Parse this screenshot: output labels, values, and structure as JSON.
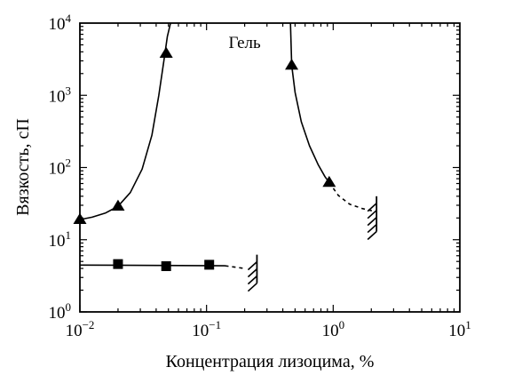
{
  "chart_data": {
    "type": "scatter",
    "xscale": "log",
    "yscale": "log",
    "xlim": [
      0.01,
      10
    ],
    "ylim": [
      1,
      10000
    ],
    "xlabel": "Концентрация лизоцима, %",
    "ylabel": "Вязкость, сП",
    "x_ticks": [
      {
        "value": 0.01,
        "base": "10",
        "exp": "−2"
      },
      {
        "value": 0.1,
        "base": "10",
        "exp": "−1"
      },
      {
        "value": 1,
        "base": "10",
        "exp": "0"
      },
      {
        "value": 10,
        "base": "10",
        "exp": "1"
      }
    ],
    "y_ticks": [
      {
        "value": 1,
        "base": "10",
        "exp": "0"
      },
      {
        "value": 10,
        "base": "10",
        "exp": "1"
      },
      {
        "value": 100,
        "base": "10",
        "exp": "2"
      },
      {
        "value": 1000,
        "base": "10",
        "exp": "3"
      },
      {
        "value": 10000,
        "base": "10",
        "exp": "4"
      }
    ],
    "grid": false,
    "annotations": [
      {
        "text": "Гель",
        "x": 0.2,
        "y": 4500
      }
    ],
    "series": [
      {
        "marker": "triangle",
        "color": "#000000",
        "x": [
          0.01,
          0.02,
          0.048
        ],
        "y": [
          19,
          29,
          3800
        ]
      },
      {
        "marker": "triangle",
        "color": "#000000",
        "x": [
          0.47,
          0.93
        ],
        "y": [
          2600,
          62
        ]
      },
      {
        "marker": "square",
        "color": "#000000",
        "x": [
          0.02,
          0.048,
          0.105
        ],
        "y": [
          4.6,
          4.3,
          4.5
        ]
      }
    ],
    "curves": [
      {
        "style": "solid",
        "x": [
          0.01,
          0.0125,
          0.016,
          0.02,
          0.025,
          0.031,
          0.037,
          0.042,
          0.046,
          0.049,
          0.052
        ],
        "y": [
          19,
          20.5,
          23.5,
          29,
          45,
          95,
          280,
          1000,
          3000,
          6500,
          10000
        ]
      },
      {
        "style": "solid",
        "x": [
          0.46,
          0.47,
          0.5,
          0.56,
          0.65,
          0.76,
          0.86,
          0.93
        ],
        "y": [
          10000,
          2600,
          1100,
          430,
          200,
          110,
          75,
          62
        ]
      },
      {
        "style": "dashed",
        "x": [
          0.93,
          1.1,
          1.35,
          1.7,
          2.05
        ],
        "y": [
          62,
          41,
          31,
          27,
          25
        ]
      },
      {
        "style": "solid",
        "x": [
          0.01,
          0.14
        ],
        "y": [
          4.45,
          4.35
        ]
      },
      {
        "style": "dashed",
        "x": [
          0.14,
          0.2
        ],
        "y": [
          4.35,
          4.0
        ]
      }
    ],
    "limit_hatches": [
      {
        "x": 0.25,
        "y_low": 2.5,
        "y_high": 6.2
      },
      {
        "x": 2.2,
        "y_low": 13,
        "y_high": 40
      }
    ]
  }
}
